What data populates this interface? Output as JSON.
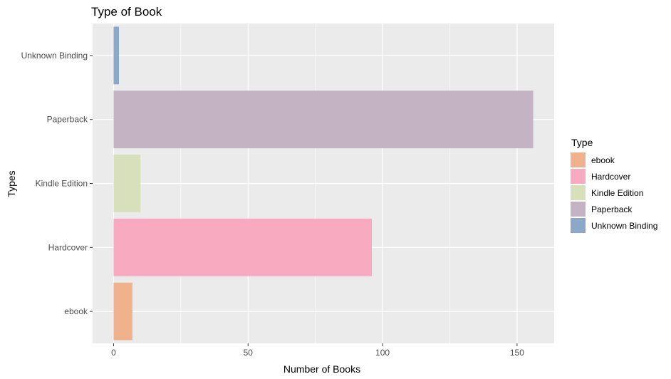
{
  "chart_data": {
    "type": "bar",
    "orientation": "horizontal",
    "title": "Type of Book",
    "xlabel": "Number of Books",
    "ylabel": "Types",
    "categories": [
      "ebook",
      "Hardcover",
      "Kindle Edition",
      "Paperback",
      "Unknown Binding"
    ],
    "values": [
      7,
      96,
      10,
      156,
      2
    ],
    "colors": [
      "#efb28c",
      "#f8aac0",
      "#d8e0bb",
      "#c4b3c3",
      "#8ba8c8"
    ],
    "xlim": [
      -7.8,
      163.8
    ],
    "xticks": [
      0,
      50,
      100,
      150
    ],
    "grid": true,
    "legend": {
      "title": "Type",
      "position": "right",
      "entries": [
        "ebook",
        "Hardcover",
        "Kindle Edition",
        "Paperback",
        "Unknown Binding"
      ]
    }
  }
}
